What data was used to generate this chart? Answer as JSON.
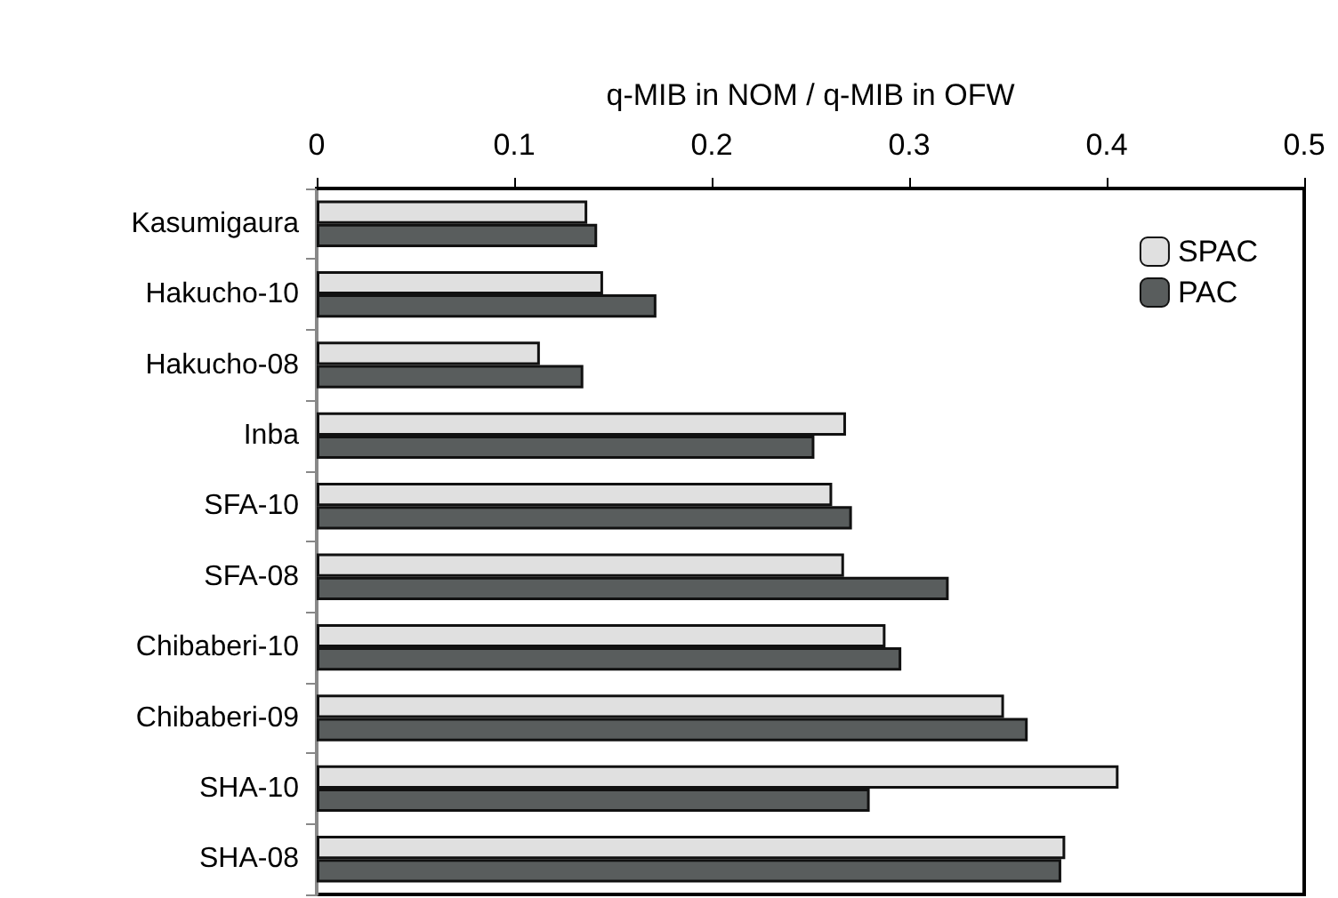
{
  "chart_data": {
    "type": "bar",
    "orientation": "horizontal",
    "xlabel": "q-MIB in NOM / q-MIB in OFW",
    "categories": [
      "Kasumigaura",
      "Hakucho-10",
      "Hakucho-08",
      "Inba",
      "SFA-10",
      "SFA-08",
      "Chibaberi-10",
      "Chibaberi-09",
      "SHA-10",
      "SHA-08"
    ],
    "series": [
      {
        "name": "SPAC",
        "color": "#e0e0e0",
        "values": [
          0.137,
          0.145,
          0.113,
          0.268,
          0.261,
          0.267,
          0.288,
          0.348,
          0.406,
          0.379
        ]
      },
      {
        "name": "PAC",
        "color": "#595d5d",
        "values": [
          0.142,
          0.172,
          0.135,
          0.252,
          0.271,
          0.32,
          0.296,
          0.36,
          0.28,
          0.377
        ]
      }
    ],
    "xlim": [
      0,
      0.5
    ],
    "xticks": [
      0,
      0.1,
      0.2,
      0.3,
      0.4,
      0.5
    ],
    "grid": false,
    "legend": "top right"
  }
}
